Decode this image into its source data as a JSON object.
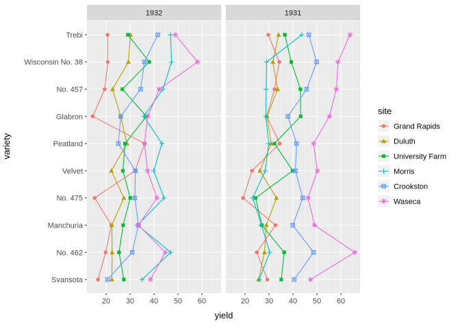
{
  "chart_data": {
    "type": "line",
    "xlabel": "yield",
    "ylabel": "variety",
    "xlim": [
      12,
      68
    ],
    "xticks": [
      20,
      30,
      40,
      50,
      60
    ],
    "grid": true,
    "legend_placement": "right",
    "legend_title": "site",
    "varieties": [
      "Trebi",
      "Wisconsin No. 38",
      "No. 457",
      "Glabron",
      "Peatland",
      "Velvet",
      "No. 475",
      "Manchuria",
      "No. 462",
      "Svansota"
    ],
    "sites": [
      {
        "name": "Grand Rapids",
        "color": "#F8766D",
        "shape": "circle"
      },
      {
        "name": "Duluth",
        "color": "#B79F00",
        "shape": "triangle"
      },
      {
        "name": "University Farm",
        "color": "#00BA38",
        "shape": "square"
      },
      {
        "name": "Morris",
        "color": "#00BFC4",
        "shape": "plus"
      },
      {
        "name": "Crookston",
        "color": "#619CFF",
        "shape": "square-x"
      },
      {
        "name": "Waseca",
        "color": "#F564E3",
        "shape": "asterisk"
      }
    ],
    "panels": [
      {
        "title": "1932",
        "series": [
          {
            "site": "Grand Rapids",
            "values": [
              20.6,
              20.7,
              19.4,
              14.4,
              36.1,
              32.1,
              15.2,
              22.2,
              19.8,
              16.6
            ]
          },
          {
            "site": "Duluth",
            "values": [
              30.2,
              29.3,
              22.7,
              26.1,
              28.7,
              22.2,
              27.4,
              22.4,
              22.5,
              22.4
            ]
          },
          {
            "site": "University Farm",
            "values": [
              29.1,
              38.0,
              26.8,
              36.8,
              27.9,
              27.0,
              30.1,
              27.1,
              25.4,
              27.4
            ]
          },
          {
            "site": "Morris",
            "values": [
              46.9,
              47.3,
              43.7,
              35.7,
              43.3,
              39.9,
              44.2,
              33.1,
              47.0,
              35.0
            ]
          },
          {
            "site": "Crookston",
            "values": [
              41.6,
              36.0,
              34.4,
              26.1,
              25.1,
              32.2,
              32.0,
              33.5,
              30.9,
              20.6
            ]
          },
          {
            "site": "Waseca",
            "values": [
              48.9,
              58.2,
              42.2,
              37.4,
              36.0,
              37.3,
              41.2,
              33.5,
              44.7,
              38.5
            ]
          }
        ]
      },
      {
        "title": "1931",
        "series": [
          {
            "site": "Grand Rapids",
            "values": [
              29.7,
              34.3,
              32.3,
              29.0,
              34.5,
              22.9,
              19.2,
              32.7,
              24.9,
              29.3
            ]
          },
          {
            "site": "Duluth",
            "values": [
              34.0,
              31.6,
              33.6,
              29.2,
              30.9,
              26.2,
              33.1,
              28.9,
              28.1,
              25.7
            ]
          },
          {
            "site": "University Farm",
            "values": [
              36.6,
              39.3,
              43.1,
              43.2,
              32.3,
              39.9,
              24.4,
              27.0,
              36.3,
              35.1
            ]
          },
          {
            "site": "Morris",
            "values": [
              43.7,
              29.0,
              28.8,
              28.7,
              29.9,
              28.4,
              23.2,
              26.9,
              30.3,
              25.9
            ]
          },
          {
            "site": "Crookston",
            "values": [
              46.6,
              49.9,
              45.7,
              37.9,
              41.5,
              41.0,
              44.1,
              39.9,
              48.6,
              40.5
            ]
          },
          {
            "site": "Waseca",
            "values": [
              63.8,
              58.8,
              58.1,
              55.2,
              48.6,
              50.2,
              46.3,
              49.0,
              65.8,
              47.3
            ]
          }
        ]
      }
    ]
  }
}
